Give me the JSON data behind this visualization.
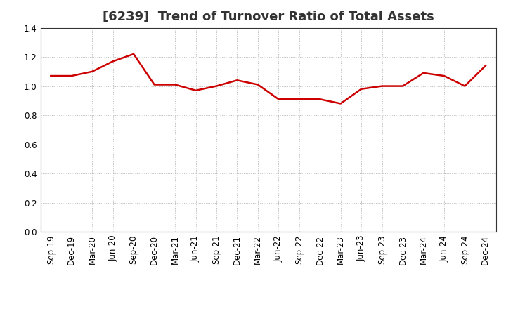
{
  "title": "[6239]  Trend of Turnover Ratio of Total Assets",
  "x_labels": [
    "Sep-19",
    "Dec-19",
    "Mar-20",
    "Jun-20",
    "Sep-20",
    "Dec-20",
    "Mar-21",
    "Jun-21",
    "Sep-21",
    "Dec-21",
    "Mar-22",
    "Jun-22",
    "Sep-22",
    "Dec-22",
    "Mar-23",
    "Jun-23",
    "Sep-23",
    "Dec-23",
    "Mar-24",
    "Jun-24",
    "Sep-24",
    "Dec-24"
  ],
  "y_values": [
    1.07,
    1.07,
    1.1,
    1.17,
    1.22,
    1.01,
    1.01,
    0.97,
    1.0,
    1.04,
    1.01,
    0.91,
    0.91,
    0.91,
    0.88,
    0.98,
    1.0,
    1.0,
    1.09,
    1.07,
    1.0,
    1.14
  ],
  "line_color": "#cc0000",
  "line_width": 1.8,
  "ylim": [
    0.0,
    1.4
  ],
  "yticks": [
    0.0,
    0.2,
    0.4,
    0.6,
    0.8,
    1.0,
    1.2,
    1.4
  ],
  "grid_color": "#bbbbbb",
  "grid_linestyle": ":",
  "background_color": "#ffffff",
  "title_fontsize": 13,
  "tick_fontsize": 8.5
}
